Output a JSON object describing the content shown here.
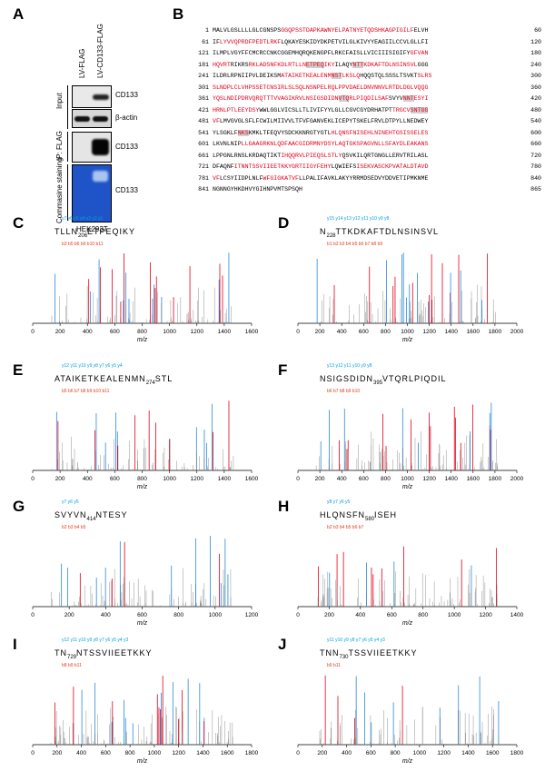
{
  "panels": {
    "A": "A",
    "B": "B",
    "C": "C",
    "D": "D",
    "E": "E",
    "F": "F",
    "G": "G",
    "H": "H",
    "I": "I",
    "J": "J"
  },
  "blot": {
    "lanes": [
      "LV-FLAG",
      "LV-CD133-FLAG"
    ],
    "section_labels": [
      "Input",
      "IP: FLAG",
      "Commasine staining"
    ],
    "bands": [
      "CD133",
      "β-actin",
      "CD133",
      "CD133"
    ],
    "cell_line": "HEK293T"
  },
  "sequence": {
    "rows": [
      {
        "start": "1",
        "end": "60",
        "segments": [
          [
            "MALVLGSLLLLGLCGNSPS",
            "k"
          ],
          [
            "GGQPSSTDAPKAWNYELPATNYETQDSHKAGPIGILF",
            "r"
          ],
          [
            "ELVH",
            "k"
          ]
        ]
      },
      {
        "start": "61",
        "end": "120",
        "segments": [
          [
            "IF",
            "k"
          ],
          [
            "LYVVQPRDFPEDTLRKF",
            "r"
          ],
          [
            "LQKAYESKIDYDKPETVILGLKIVYYEAGIILCCVLGLLFI",
            "k"
          ]
        ]
      },
      {
        "start": "121",
        "end": "180",
        "segments": [
          [
            "ILMPLVGYFFCMCRCCNKCGGEMHQRQKENGPFLRKCFAISLLVICIIISIGIFY",
            "k"
          ],
          [
            "GFVAN",
            "r"
          ]
        ]
      },
      {
        "start": "181",
        "end": "240",
        "segments": [
          [
            "HQVRT",
            "r"
          ],
          [
            "RIKRS",
            "k"
          ],
          [
            "RKLADSNFKDLRTLLN",
            "r"
          ],
          [
            "ETPEQ",
            "s"
          ],
          [
            "IKY",
            "r"
          ],
          [
            "ILAQY",
            "k"
          ],
          [
            "NTT",
            "s"
          ],
          [
            "KDKAFTDLNSINSVL",
            "r"
          ],
          [
            "GGG",
            "k"
          ]
        ]
      },
      {
        "start": "241",
        "end": "300",
        "segments": [
          [
            "ILDRLRPNIIPVLDEIKSM",
            "k"
          ],
          [
            "ATAIKETKEALENM",
            "r"
          ],
          [
            "NST",
            "s"
          ],
          [
            "LKSLQ",
            "r"
          ],
          [
            "HQQSTQLSSSLTSVKT",
            "k"
          ],
          [
            "SLRS",
            "r"
          ]
        ]
      },
      {
        "start": "301",
        "end": "360",
        "segments": [
          [
            "SLNDPLCLVHPSSETCNSIRLSLSQLNSNPELRQLPPVDAELDNVNNVLRTDLDGLVQQG",
            "r"
          ]
        ]
      },
      {
        "start": "361",
        "end": "420",
        "segments": [
          [
            "YQSLNDIPDRVQRQTTTVVAGIKRVLNSIGSDIDN",
            "r"
          ],
          [
            "VTQ",
            "s"
          ],
          [
            "RLPIQDILSAF",
            "r"
          ],
          [
            "SVYV",
            "k"
          ],
          [
            "NNT",
            "s"
          ],
          [
            "ESYI",
            "r"
          ]
        ]
      },
      {
        "start": "421",
        "end": "480",
        "segments": [
          [
            "HRNLPTLEEYDSY",
            "r"
          ],
          [
            "WWLGGLVICSLLTLIVIFYYLGLLCGVCGYDRHATPT",
            "k"
          ],
          [
            "TRGCV",
            "r"
          ],
          [
            "SNTGG",
            "s"
          ]
        ]
      },
      {
        "start": "481",
        "end": "540",
        "segments": [
          [
            "VF",
            "r"
          ],
          [
            "LMVGVGLSFLFCWILMIIVVLTFVFGANVEKLICEPYTSKELFRVLDTPYLLNEDWEY",
            "k"
          ]
        ]
      },
      {
        "start": "541",
        "end": "600",
        "segments": [
          [
            "YLSGKLF",
            "k"
          ],
          [
            "NKS",
            "s"
          ],
          [
            "KMKLTFEQVYSDCKKNRGTYGTL",
            "k"
          ],
          [
            "HLQNSF",
            "r"
          ],
          [
            "NISEHLNINEHTGSISSELES",
            "r"
          ]
        ]
      },
      {
        "start": "601",
        "end": "660",
        "segments": [
          [
            "LKVNLNIP",
            "k"
          ],
          [
            "LLGAAGRKNLQDFAACGIDRMNYDSYLAQTGKSPAGVNLLSFAYDLEAKANS",
            "r"
          ]
        ]
      },
      {
        "start": "661",
        "end": "720",
        "segments": [
          [
            "LPPGNLRNSLKRDAQTIKT",
            "k"
          ],
          [
            "IHQQRVLPIEQSLSTLY",
            "r"
          ],
          [
            "QSVKILQRTGNGLLERVTRILASL",
            "k"
          ]
        ]
      },
      {
        "start": "721",
        "end": "780",
        "segments": [
          [
            "DFAQNF",
            "k"
          ],
          [
            "ITNNTSSVIIEETKKYGRTIIGYFEHY",
            "r"
          ],
          [
            "LQWIEFS",
            "k"
          ],
          [
            "ISEKVASCKPVATALDTAVD",
            "r"
          ]
        ]
      },
      {
        "start": "781",
        "end": "840",
        "segments": [
          [
            "VF",
            "r"
          ],
          [
            "LCSYIIDPLNLF",
            "k"
          ],
          [
            "WFGIGKATVF",
            "r"
          ],
          [
            "LLPALIFAVKLAKYYRRMDSEDVYDDVETIPMKNME",
            "k"
          ]
        ]
      },
      {
        "start": "841",
        "end": "865",
        "segments": [
          [
            "NGNNGYHKDHVYGIHNPVMTSPSQH",
            "k"
          ]
        ]
      }
    ]
  },
  "spectra": [
    {
      "panel": "C",
      "pre": "TLLN",
      "site": "206",
      "post": "ETPEQIKY",
      "y_ions": "y7 y6 y5 y4 y3 y2 y1",
      "b_ions": "b3 b5 b6 b9 b10 b11",
      "xmax": 1600,
      "ticks": [
        "0",
        "200",
        "400",
        "600",
        "800",
        "1000",
        "1200",
        "1400",
        "1600"
      ],
      "xlabel": "m/z"
    },
    {
      "panel": "D",
      "pre": "N",
      "site": "228",
      "post": "TTKDKAFTDLNSINSVL",
      "y_ions": "y15 y14 y13 y12 y11 y10 y9 y8",
      "b_ions": "b1 b2 b3 b4 b5 b6 b7 b8 b9",
      "xmax": 2000,
      "ticks": [
        "0",
        "200",
        "400",
        "600",
        "800",
        "1000",
        "1200",
        "1400",
        "1600",
        "1800",
        "2000"
      ],
      "xlabel": "m/z"
    },
    {
      "panel": "E",
      "pre": "ATAIKETKEALENMN",
      "site": "274",
      "post": "STL",
      "y_ions": "y12 y11 y10 y9 y8 y7 y6 y5 y4",
      "b_ions": "b5 b6 b7 b8 b9 b10 b11",
      "xmax": 1600,
      "ticks": [
        "0",
        "200",
        "400",
        "600",
        "800",
        "1000",
        "1200",
        "1400",
        "1600"
      ],
      "xlabel": "m/z"
    },
    {
      "panel": "F",
      "pre": "NSIGSDIDN",
      "site": "395",
      "post": "VTQRLPIQDIL",
      "y_ions": "y13 y12 y11 y10 y9 y8",
      "b_ions": "b6 b7 b8 b9 b10",
      "xmax": 2000,
      "ticks": [
        "0",
        "200",
        "400",
        "600",
        "800",
        "1000",
        "1200",
        "1400",
        "1600",
        "1800",
        "2000"
      ],
      "xlabel": "m/z"
    },
    {
      "panel": "G",
      "pre": "SVYVN",
      "site": "414",
      "post": "NTESY",
      "y_ions": "y7 y6 y5",
      "b_ions": "b2 b3 b4 b5",
      "xmax": 1200,
      "ticks": [
        "0",
        "200",
        "400",
        "600",
        "800",
        "1000",
        "1200"
      ],
      "xlabel": "m/z"
    },
    {
      "panel": "H",
      "pre": "HLQNSFN",
      "site": "580",
      "post": "ISEH",
      "y_ions": "y8 y7 y6 y5",
      "b_ions": "b2 b3 b4 b5 b6 b7",
      "xmax": 1400,
      "ticks": [
        "0",
        "200",
        "400",
        "600",
        "800",
        "1000",
        "1200",
        "1400"
      ],
      "xlabel": "m/z"
    },
    {
      "panel": "I",
      "pre": "TN",
      "site": "729",
      "post": "NTSSVIIEETKKY",
      "y_ions": "y12 y11 y10 y9 y8 y7 y6 y5 y4 y3",
      "b_ions": "b8 b9 b11",
      "xmax": 1800,
      "ticks": [
        "0",
        "200",
        "400",
        "600",
        "800",
        "1000",
        "1200",
        "1400",
        "1600",
        "1800"
      ],
      "xlabel": "m/z"
    },
    {
      "panel": "J",
      "pre": "TNN",
      "site": "730",
      "post": "TSSVIIEETKKY",
      "y_ions": "y11 y10 y9 y8 y7 y6 y5 y4 y3",
      "b_ions": "b9 b11",
      "xmax": 1800,
      "ticks": [
        "0",
        "200",
        "400",
        "600",
        "800",
        "1000",
        "1200",
        "1400",
        "1600",
        "1800"
      ],
      "xlabel": "m/z"
    }
  ]
}
